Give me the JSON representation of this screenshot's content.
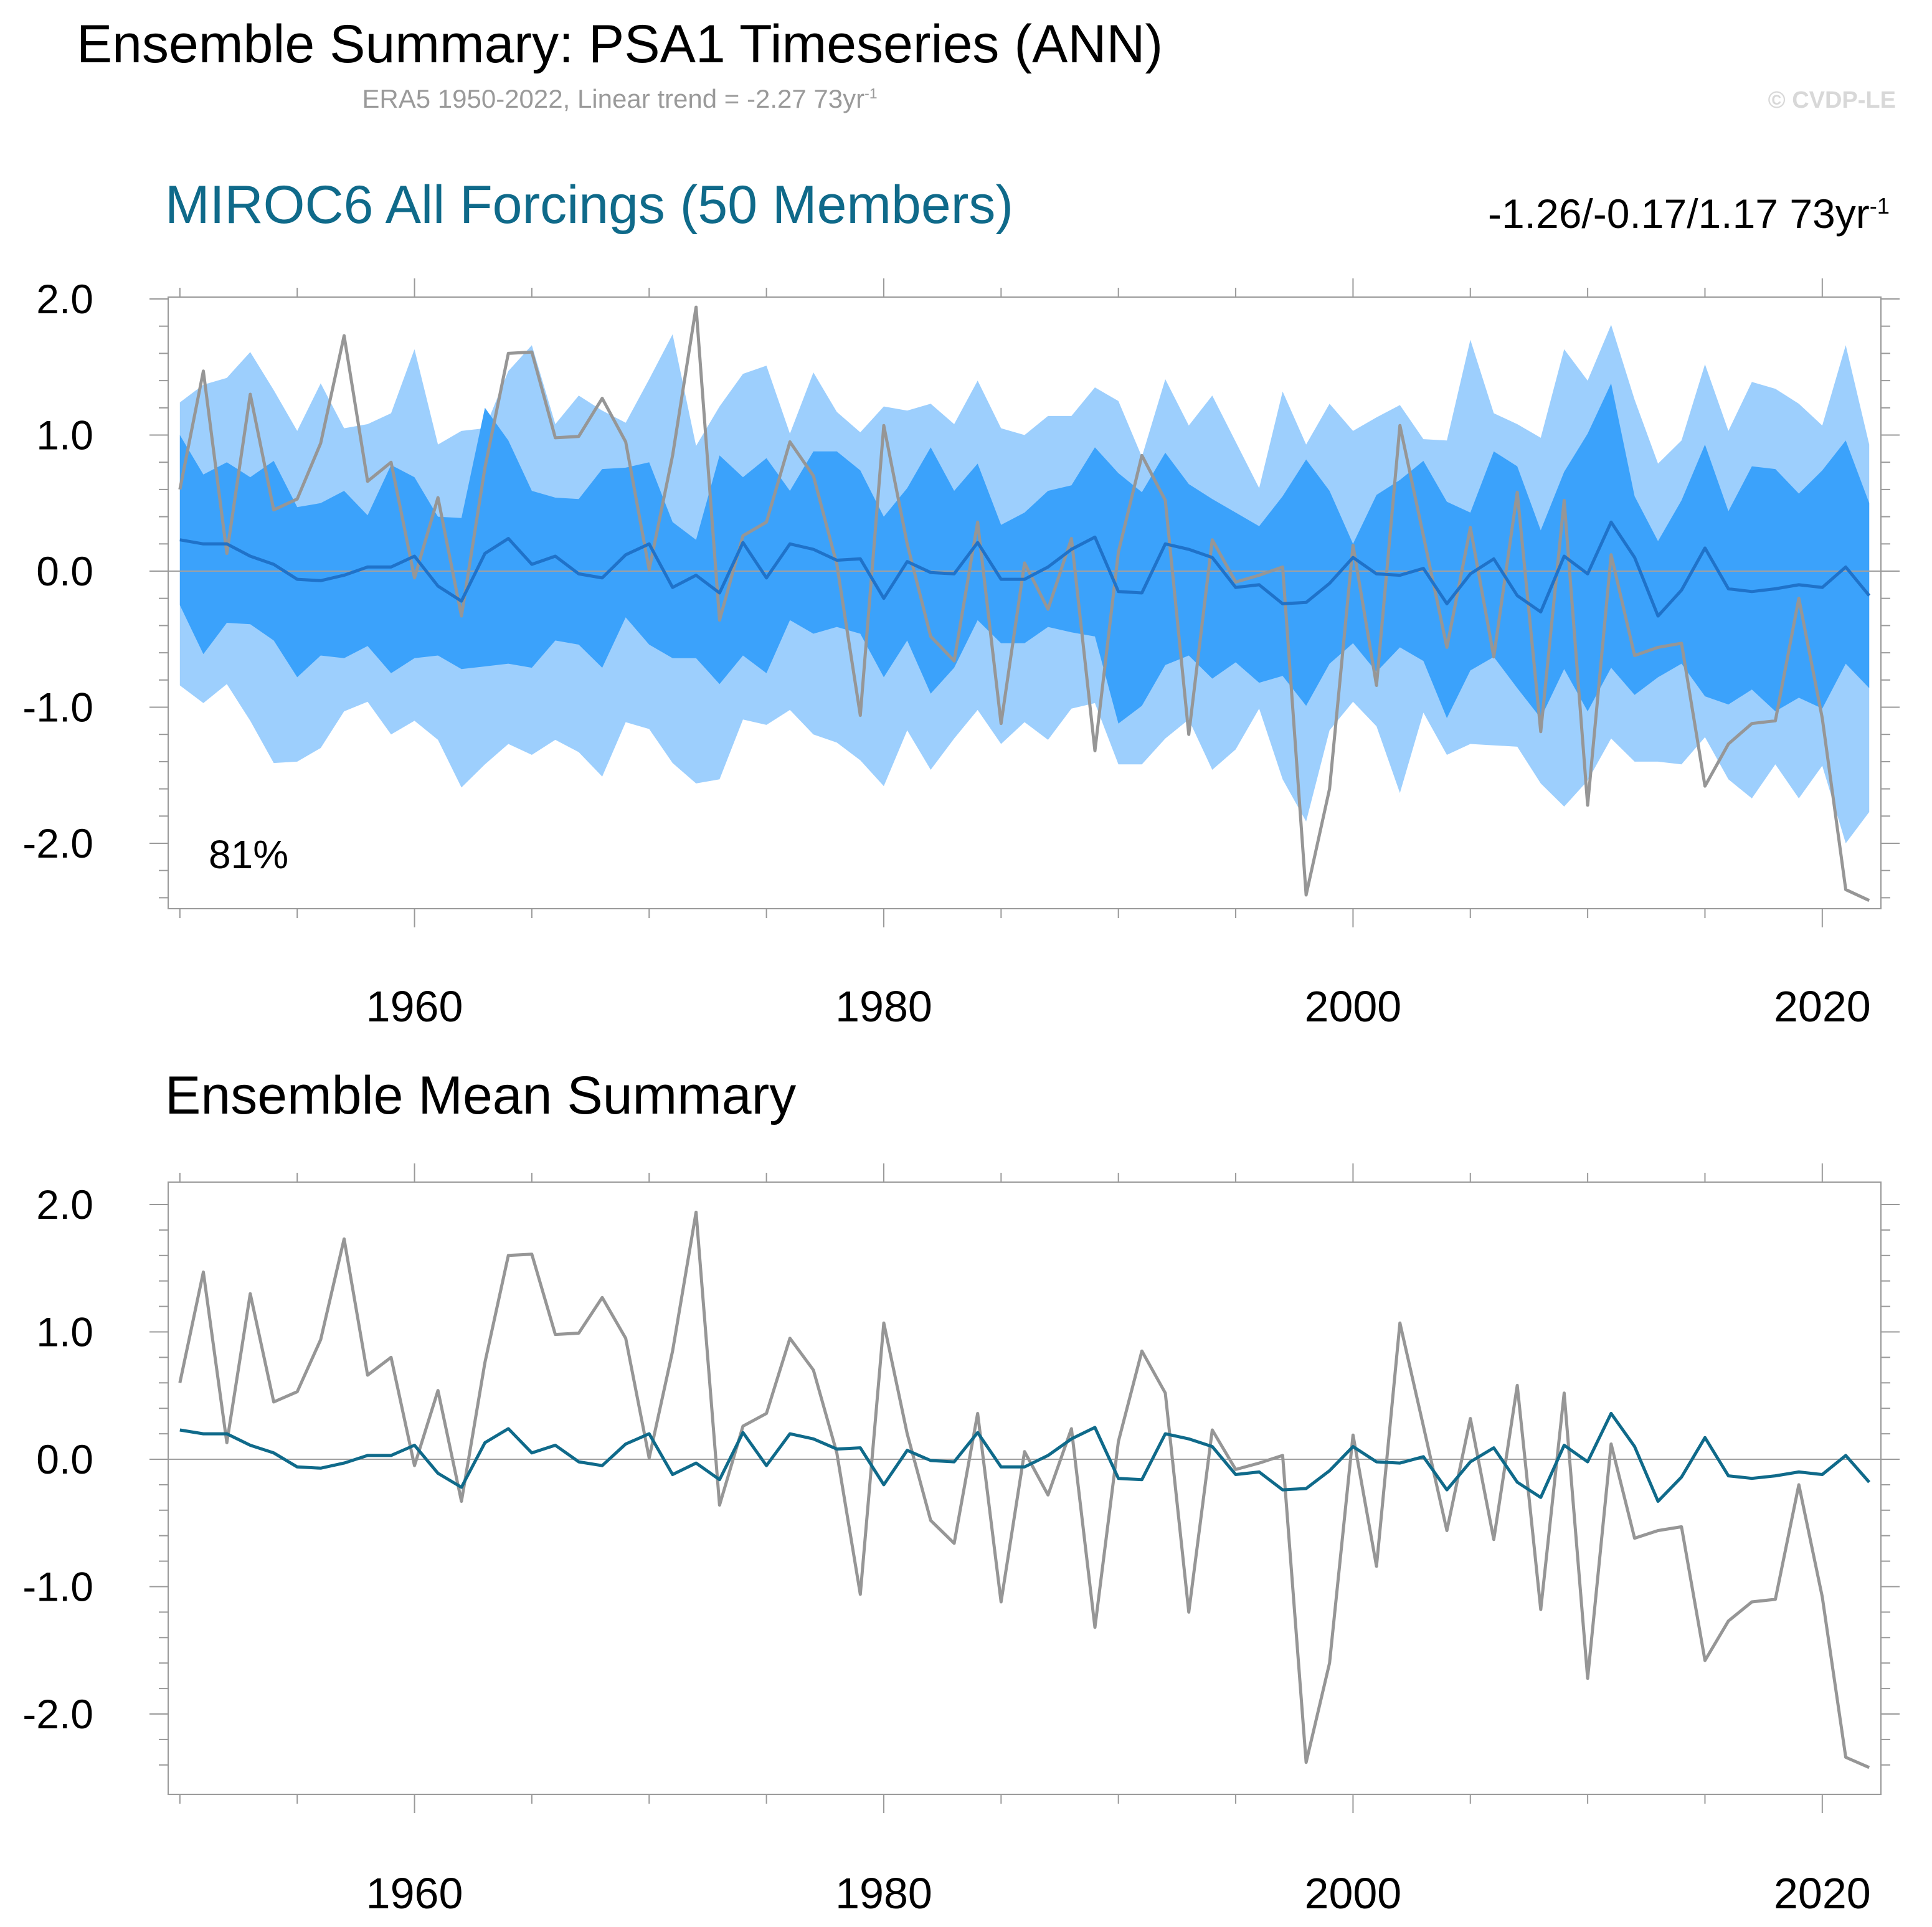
{
  "header": {
    "title": "Ensemble Summary: PSA1 Timeseries (ANN)",
    "subtitle_prefix": "ERA5 1950-2022, Linear trend = -2.27 73yr",
    "subtitle_sup": "-1",
    "copyright": "© CVDP-LE"
  },
  "panel1": {
    "title": "MIROC6 All Forcings (50 Members)",
    "trend_prefix": "-1.26/-0.17/1.17 73yr",
    "trend_sup": "-1",
    "percent_label": "81%"
  },
  "panel2": {
    "title": "Ensemble Mean Summary"
  },
  "colors": {
    "band_outer": "#9dcffd",
    "band_inner": "#3ba2fb",
    "ensemble_mean_panel1": "#1f72c9",
    "ensemble_mean_panel2": "#0f6a8a",
    "observations": "#969696",
    "zero_line": "#a0a0a0",
    "frame": "#9a9a9a"
  },
  "chart_data": {
    "type": "line",
    "x": [
      1950,
      1951,
      1952,
      1953,
      1954,
      1955,
      1956,
      1957,
      1958,
      1959,
      1960,
      1961,
      1962,
      1963,
      1964,
      1965,
      1966,
      1967,
      1968,
      1969,
      1970,
      1971,
      1972,
      1973,
      1974,
      1975,
      1976,
      1977,
      1978,
      1979,
      1980,
      1981,
      1982,
      1983,
      1984,
      1985,
      1986,
      1987,
      1988,
      1989,
      1990,
      1991,
      1992,
      1993,
      1994,
      1995,
      1996,
      1997,
      1998,
      1999,
      2000,
      2001,
      2002,
      2003,
      2004,
      2005,
      2006,
      2007,
      2008,
      2009,
      2010,
      2011,
      2012,
      2013,
      2014,
      2015,
      2016,
      2017,
      2018,
      2019,
      2020,
      2021,
      2022
    ],
    "xlim": [
      1949.5,
      2022.5
    ],
    "ylim": [
      -2.5,
      2.05
    ],
    "xticks": [
      "1960",
      "1980",
      "2000",
      "2020"
    ],
    "yticks": [
      "2.0",
      "1.0",
      "0.0",
      "-1.0",
      "-2.0"
    ],
    "series": [
      {
        "name": "ERA5",
        "values": [
          0.6,
          1.47,
          0.13,
          1.3,
          0.45,
          0.53,
          0.94,
          1.73,
          0.66,
          0.8,
          -0.05,
          0.54,
          -0.33,
          0.76,
          1.6,
          1.61,
          0.98,
          0.99,
          1.27,
          0.95,
          0.01,
          0.85,
          1.94,
          -0.36,
          0.26,
          0.36,
          0.95,
          0.7,
          0.05,
          -1.06,
          1.07,
          0.2,
          -0.48,
          -0.66,
          0.36,
          -1.12,
          0.06,
          -0.28,
          0.24,
          -1.32,
          0.14,
          0.85,
          0.52,
          -1.2,
          0.23,
          -0.08,
          -0.03,
          0.03,
          -2.38,
          -1.6,
          0.19,
          -0.84,
          1.07,
          0.26,
          -0.56,
          0.32,
          -0.63,
          0.58,
          -1.18,
          0.52,
          -1.72,
          0.12,
          -0.62,
          -0.56,
          -0.53,
          -1.58,
          -1.27,
          -1.12,
          -1.1,
          -0.2,
          -1.08,
          -2.34,
          -2.42
        ]
      },
      {
        "name": "Ensemble mean",
        "values": [
          0.23,
          0.2,
          0.2,
          0.11,
          0.05,
          -0.06,
          -0.07,
          -0.03,
          0.03,
          0.03,
          0.11,
          -0.11,
          -0.22,
          0.13,
          0.24,
          0.05,
          0.11,
          -0.02,
          -0.05,
          0.12,
          0.2,
          -0.12,
          -0.03,
          -0.16,
          0.21,
          -0.05,
          0.2,
          0.16,
          0.08,
          0.09,
          -0.2,
          0.07,
          -0.01,
          -0.02,
          0.21,
          -0.06,
          -0.06,
          0.03,
          0.16,
          0.25,
          -0.15,
          -0.16,
          0.2,
          0.16,
          0.1,
          -0.12,
          -0.1,
          -0.24,
          -0.23,
          -0.09,
          0.1,
          -0.02,
          -0.03,
          0.02,
          -0.24,
          -0.02,
          0.09,
          -0.18,
          -0.3,
          0.11,
          -0.02,
          0.36,
          0.1,
          -0.33,
          -0.14,
          0.17,
          -0.13,
          -0.15,
          -0.13,
          -0.1,
          -0.12,
          0.03,
          -0.18
        ]
      }
    ],
    "bands_panel1": {
      "outer_upper": [
        1.24,
        1.37,
        1.42,
        1.61,
        1.33,
        1.03,
        1.38,
        1.05,
        1.08,
        1.16,
        1.63,
        0.93,
        1.03,
        1.05,
        1.47,
        1.66,
        1.08,
        1.29,
        1.18,
        1.09,
        1.41,
        1.74,
        0.92,
        1.21,
        1.45,
        1.51,
        1.01,
        1.46,
        1.17,
        1.02,
        1.21,
        1.18,
        1.23,
        1.08,
        1.4,
        1.05,
        1.0,
        1.14,
        1.14,
        1.35,
        1.25,
        0.84,
        1.41,
        1.07,
        1.29,
        0.95,
        0.61,
        1.32,
        0.93,
        1.23,
        1.03,
        1.13,
        1.22,
        0.97,
        0.96,
        1.7,
        1.16,
        1.08,
        0.98,
        1.63,
        1.4,
        1.81,
        1.26,
        0.79,
        0.96,
        1.52,
        1.03,
        1.39,
        1.34,
        1.23,
        1.07,
        1.66,
        0.93
      ],
      "inner_upper": [
        1.0,
        0.71,
        0.8,
        0.69,
        0.81,
        0.47,
        0.5,
        0.59,
        0.41,
        0.78,
        0.69,
        0.4,
        0.39,
        1.2,
        0.96,
        0.59,
        0.54,
        0.53,
        0.75,
        0.76,
        0.8,
        0.36,
        0.23,
        0.85,
        0.69,
        0.83,
        0.59,
        0.88,
        0.88,
        0.74,
        0.4,
        0.61,
        0.91,
        0.59,
        0.79,
        0.34,
        0.43,
        0.59,
        0.63,
        0.91,
        0.72,
        0.58,
        0.87,
        0.64,
        0.53,
        0.43,
        0.33,
        0.55,
        0.82,
        0.59,
        0.2,
        0.56,
        0.67,
        0.81,
        0.51,
        0.43,
        0.88,
        0.77,
        0.3,
        0.73,
        1.01,
        1.38,
        0.55,
        0.22,
        0.52,
        0.93,
        0.44,
        0.77,
        0.75,
        0.57,
        0.74,
        0.96,
        0.5
      ],
      "inner_lower": [
        -0.25,
        -0.61,
        -0.38,
        -0.39,
        -0.51,
        -0.78,
        -0.62,
        -0.64,
        -0.55,
        -0.75,
        -0.64,
        -0.62,
        -0.72,
        -0.7,
        -0.68,
        -0.71,
        -0.51,
        -0.54,
        -0.71,
        -0.34,
        -0.54,
        -0.64,
        -0.64,
        -0.83,
        -0.62,
        -0.75,
        -0.36,
        -0.46,
        -0.41,
        -0.46,
        -0.78,
        -0.51,
        -0.9,
        -0.71,
        -0.36,
        -0.53,
        -0.53,
        -0.41,
        -0.45,
        -0.48,
        -1.12,
        -0.99,
        -0.69,
        -0.62,
        -0.79,
        -0.67,
        -0.82,
        -0.77,
        -0.99,
        -0.68,
        -0.53,
        -0.74,
        -0.56,
        -0.66,
        -1.08,
        -0.73,
        -0.63,
        -0.86,
        -1.08,
        -0.72,
        -1.03,
        -0.71,
        -0.91,
        -0.78,
        -0.68,
        -0.92,
        -0.98,
        -0.87,
        -1.03,
        -0.93,
        -1.01,
        -0.68,
        -0.86
      ],
      "outer_lower": [
        -0.84,
        -0.97,
        -0.83,
        -1.1,
        -1.41,
        -1.4,
        -1.3,
        -1.03,
        -0.96,
        -1.2,
        -1.1,
        -1.24,
        -1.59,
        -1.42,
        -1.27,
        -1.35,
        -1.24,
        -1.33,
        -1.51,
        -1.11,
        -1.16,
        -1.41,
        -1.56,
        -1.53,
        -1.09,
        -1.13,
        -1.02,
        -1.2,
        -1.26,
        -1.39,
        -1.58,
        -1.17,
        -1.46,
        -1.23,
        -1.02,
        -1.27,
        -1.11,
        -1.24,
        -1.01,
        -0.97,
        -1.42,
        -1.42,
        -1.23,
        -1.09,
        -1.46,
        -1.31,
        -1.01,
        -1.53,
        -1.84,
        -1.17,
        -0.96,
        -1.14,
        -1.63,
        -1.04,
        -1.35,
        -1.27,
        -1.28,
        -1.29,
        -1.56,
        -1.73,
        -1.54,
        -1.23,
        -1.4,
        -1.4,
        -1.42,
        -1.22,
        -1.53,
        -1.67,
        -1.42,
        -1.67,
        -1.43,
        -2.0,
        -1.77
      ]
    }
  }
}
